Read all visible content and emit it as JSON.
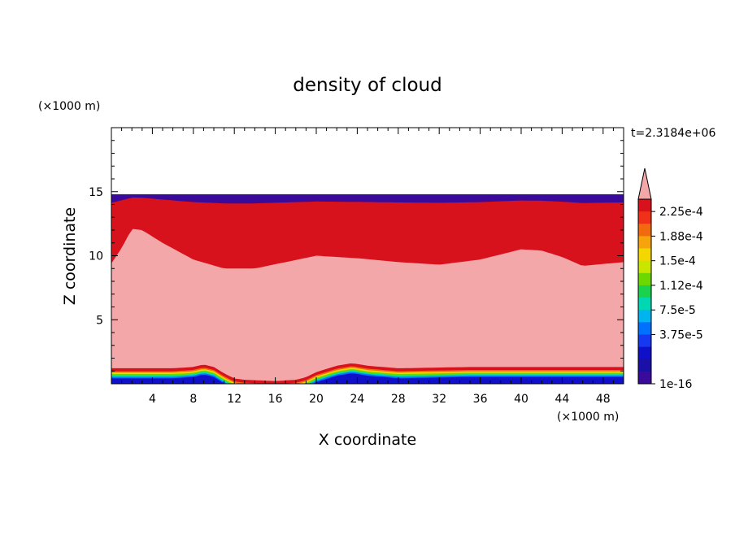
{
  "chart_data": {
    "type": "heatmap",
    "title": "density of cloud",
    "time_label": "t=2.3184e+06",
    "xlabel": "X coordinate",
    "ylabel": "Z coordinate",
    "x_unit": "(×1000 m)",
    "y_unit": "(×1000 m)",
    "xlim": [
      0,
      50
    ],
    "ylim": [
      0,
      20
    ],
    "x_ticks": [
      4,
      8,
      12,
      16,
      20,
      24,
      28,
      32,
      36,
      40,
      44,
      48
    ],
    "y_ticks": [
      5,
      10,
      15
    ],
    "colorbar": {
      "labels": [
        "2.25e-4",
        "1.88e-4",
        "1.5e-4",
        "1.12e-4",
        "7.5e-5",
        "3.75e-5",
        "1e-16"
      ],
      "levels_top_to_bottom": [
        "#f4a7a8",
        "#d8121c",
        "#f03018",
        "#f26a10",
        "#f6a40c",
        "#f4d600",
        "#c8e600",
        "#6cd800",
        "#1ad24e",
        "#00d8b4",
        "#00b4f0",
        "#0070ff",
        "#1638f0",
        "#1010c8",
        "#1a10a8",
        "#3a0a9a"
      ],
      "overflow_color": "#f4a7a8"
    },
    "data_top_z": 14.8,
    "upper_cloud_base_z": [
      [
        0,
        9.4
      ],
      [
        1,
        10.6
      ],
      [
        2,
        12.1
      ],
      [
        3,
        12.0
      ],
      [
        5,
        11.0
      ],
      [
        8,
        9.7
      ],
      [
        11,
        9.0
      ],
      [
        14,
        9.0
      ],
      [
        17,
        9.5
      ],
      [
        20,
        10.0
      ],
      [
        24,
        9.8
      ],
      [
        28,
        9.5
      ],
      [
        32,
        9.3
      ],
      [
        36,
        9.7
      ],
      [
        40,
        10.5
      ],
      [
        42,
        10.4
      ],
      [
        44,
        9.9
      ],
      [
        46,
        9.2
      ],
      [
        50,
        9.5
      ]
    ],
    "lower_cloud_top_z": [
      [
        0,
        1.2
      ],
      [
        6,
        1.2
      ],
      [
        8,
        1.3
      ],
      [
        9,
        1.5
      ],
      [
        10,
        1.3
      ],
      [
        11,
        0.8
      ],
      [
        12,
        0.4
      ],
      [
        13,
        0.3
      ],
      [
        16,
        0.2
      ],
      [
        18,
        0.3
      ],
      [
        19,
        0.5
      ],
      [
        20,
        0.9
      ],
      [
        22,
        1.4
      ],
      [
        23.5,
        1.6
      ],
      [
        25,
        1.4
      ],
      [
        28,
        1.2
      ],
      [
        35,
        1.3
      ],
      [
        50,
        1.3
      ]
    ]
  }
}
